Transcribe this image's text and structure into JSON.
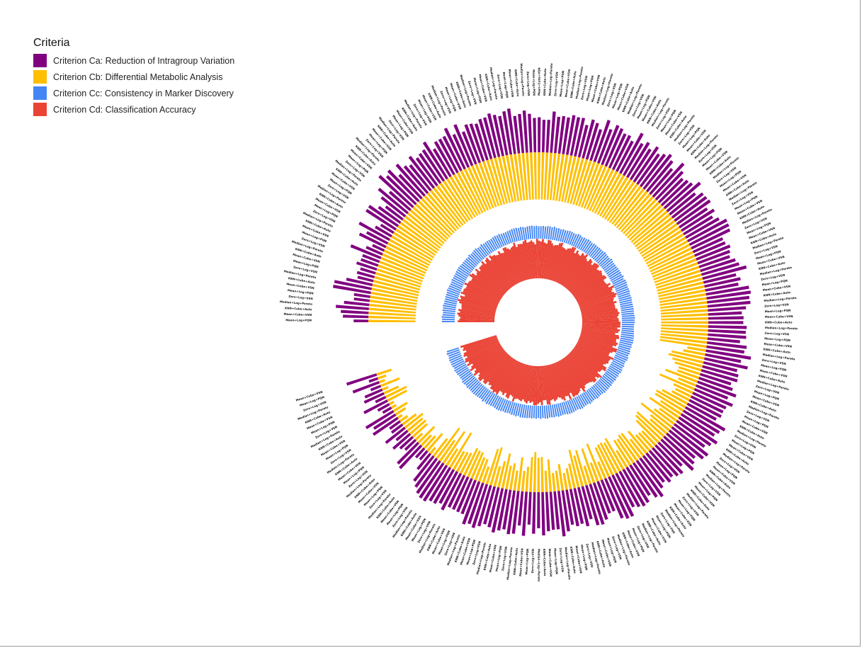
{
  "chart_data": {
    "type": "bar",
    "subtype": "circular-stacked-bar",
    "legend": {
      "title": "Criteria",
      "position": "top-left",
      "items": [
        {
          "name": "Criterion Ca: Reduction of Intragroup Variation",
          "color": "#800080"
        },
        {
          "name": "Criterion Cb: Differential Metabolic Analysis",
          "color": "#FFBF00"
        },
        {
          "name": "Criterion Cc: Consistency in Marker Discovery",
          "color": "#4285F4"
        },
        {
          "name": "Criterion Cd: Classification Accuracy",
          "color": "#EA4335"
        }
      ]
    },
    "grid": false,
    "ylim": [
      0,
      1
    ],
    "n_strategies": 252,
    "sorted_by_score": "descending",
    "score_range": [
      0.35,
      1.0
    ],
    "category_examples": [
      "Mean+Log+PQN",
      "Mean+Cube+VSN",
      "KNN+Cube+Auto",
      "Median+Log+Pareto",
      "Zero+Log+VSN"
    ],
    "series_profile": {
      "Criterion Ca: Reduction of Intragroup Variation": {
        "top_range": [
          0.0,
          1.0
        ],
        "low_range": [
          0.0,
          0.0
        ]
      },
      "Criterion Cb: Differential Metabolic Analysis": {
        "top_range": [
          0.0,
          1.0
        ],
        "low_range": [
          0.0,
          0.0
        ]
      },
      "Criterion Cc: Consistency in Marker Discovery": {
        "top_range": [
          0.0,
          1.0
        ],
        "low_range": [
          0.0,
          0.0
        ]
      },
      "Criterion Cd: Classification Accuracy": {
        "top_range": [
          0.0,
          1.0
        ],
        "low_range": [
          0.0,
          0.0
        ]
      }
    }
  }
}
